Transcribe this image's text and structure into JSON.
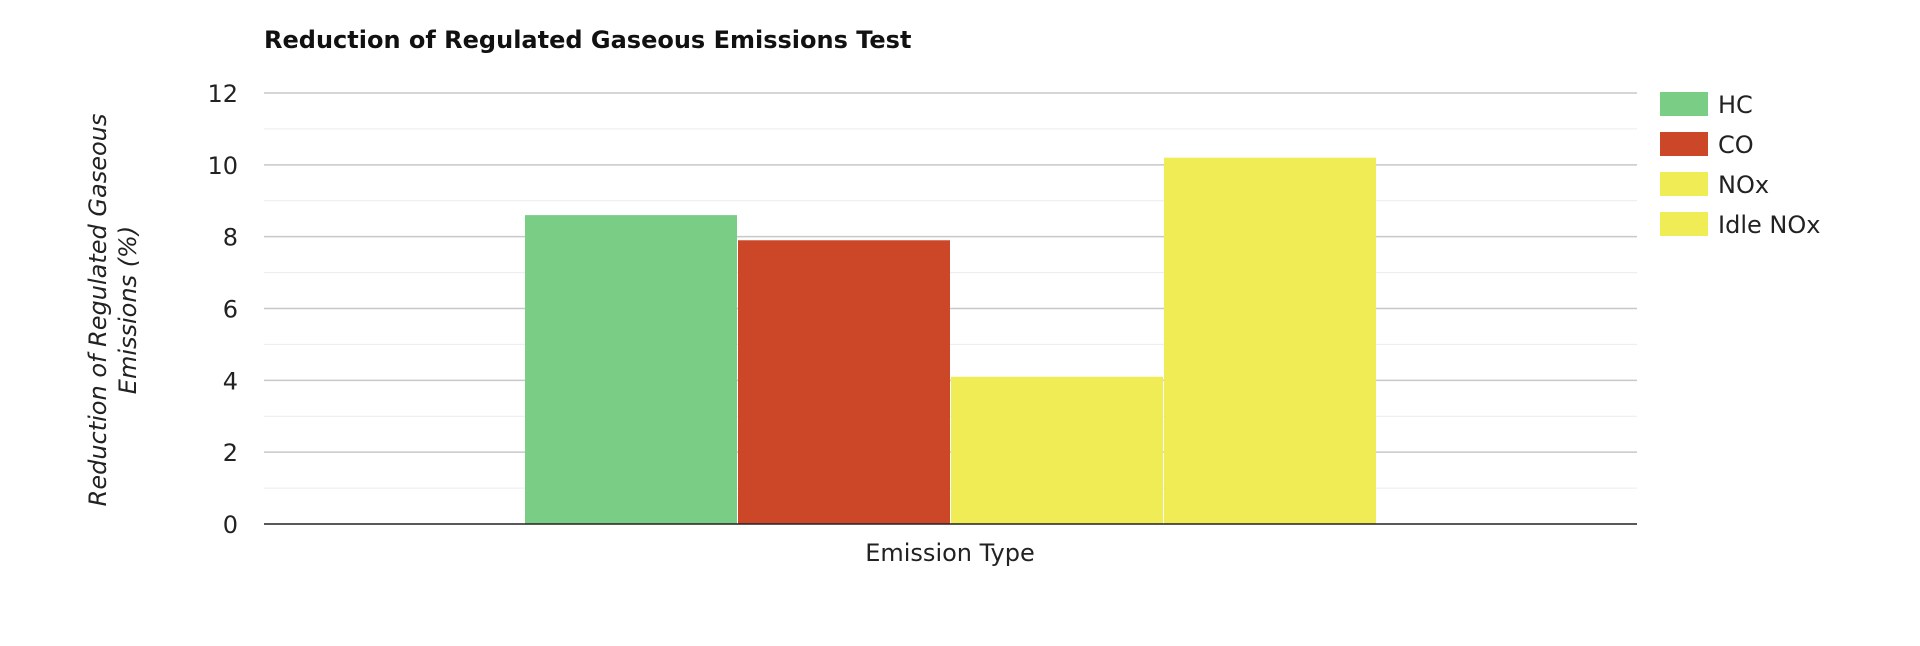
{
  "chart_data": {
    "type": "bar",
    "title": "Reduction of Regulated Gaseous Emissions Test",
    "xlabel": "Emission Type",
    "ylabel_lines": [
      "Reduction of Regulated Gaseous",
      "Emissions (%)"
    ],
    "ylim": [
      0,
      12
    ],
    "yticks": [
      "0",
      "2",
      "4",
      "6",
      "8",
      "10",
      "12"
    ],
    "grid": true,
    "legend_position": "right",
    "categories": [
      ""
    ],
    "series": [
      {
        "name": "HC",
        "values": [
          8.6
        ],
        "color": "#79cd85"
      },
      {
        "name": "CO",
        "values": [
          7.9
        ],
        "color": "#cc4628"
      },
      {
        "name": "NOx",
        "values": [
          4.1
        ],
        "color": "#f0ec55"
      },
      {
        "name": "Idle NOx",
        "values": [
          10.2
        ],
        "color": "#f0ec55"
      }
    ]
  }
}
